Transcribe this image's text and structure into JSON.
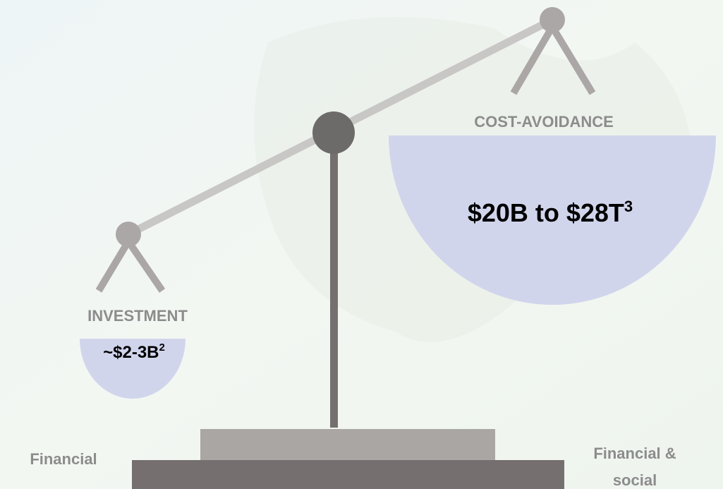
{
  "investment": {
    "label": "INVESTMENT",
    "value": "~$2-3B",
    "note": "2"
  },
  "cost_avoidance": {
    "label": "COST-AVOIDANCE",
    "value": "$20B to $28T",
    "note": "3"
  },
  "base": {
    "left_label": "Financial",
    "right_label": [
      "Financial &",
      "social"
    ]
  }
}
